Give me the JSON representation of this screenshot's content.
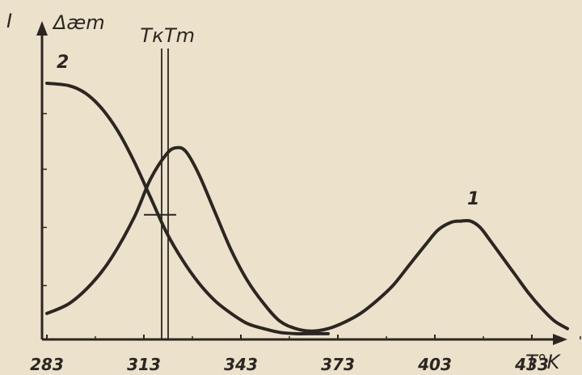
{
  "chart_data": {
    "type": "line",
    "ylabel_left": "I",
    "ylabel_right": "Δæm",
    "xlabel": "T°K",
    "x_ticks": [
      283,
      313,
      343,
      373,
      403,
      433
    ],
    "xlim": [
      283,
      460
    ],
    "ylim": [
      0,
      1
    ],
    "markers": [
      {
        "label": "Tк",
        "x": 318.5
      },
      {
        "label": "Tm",
        "x": 320.5
      }
    ],
    "series": [
      {
        "name": "1",
        "x": [
          283,
          290,
          297,
          303,
          310,
          315,
          320,
          323,
          326,
          330,
          335,
          340,
          345,
          350,
          355,
          360,
          365,
          370,
          375,
          380,
          385,
          390,
          395,
          400,
          404,
          408,
          411,
          414,
          417,
          420,
          424,
          428,
          432,
          436,
          440,
          444
        ],
        "y": [
          0.09,
          0.13,
          0.21,
          0.31,
          0.47,
          0.62,
          0.72,
          0.745,
          0.73,
          0.64,
          0.49,
          0.34,
          0.22,
          0.13,
          0.06,
          0.03,
          0.02,
          0.03,
          0.055,
          0.09,
          0.14,
          0.2,
          0.28,
          0.36,
          0.42,
          0.45,
          0.455,
          0.455,
          0.43,
          0.38,
          0.31,
          0.24,
          0.17,
          0.11,
          0.06,
          0.03
        ]
      },
      {
        "name": "2",
        "x": [
          283,
          290,
          295,
          300,
          305,
          310,
          315,
          320,
          325,
          330,
          335,
          340,
          345,
          350,
          355,
          360,
          365,
          370
        ],
        "y": [
          1.0,
          0.99,
          0.96,
          0.9,
          0.81,
          0.69,
          0.55,
          0.41,
          0.3,
          0.21,
          0.14,
          0.09,
          0.05,
          0.03,
          0.015,
          0.01,
          0.01,
          0.01
        ]
      }
    ],
    "series_label_positions": [
      {
        "label": "1",
        "x": 413,
        "y": 0.52
      },
      {
        "label": "2",
        "x": 286,
        "y": 1.06
      }
    ]
  }
}
